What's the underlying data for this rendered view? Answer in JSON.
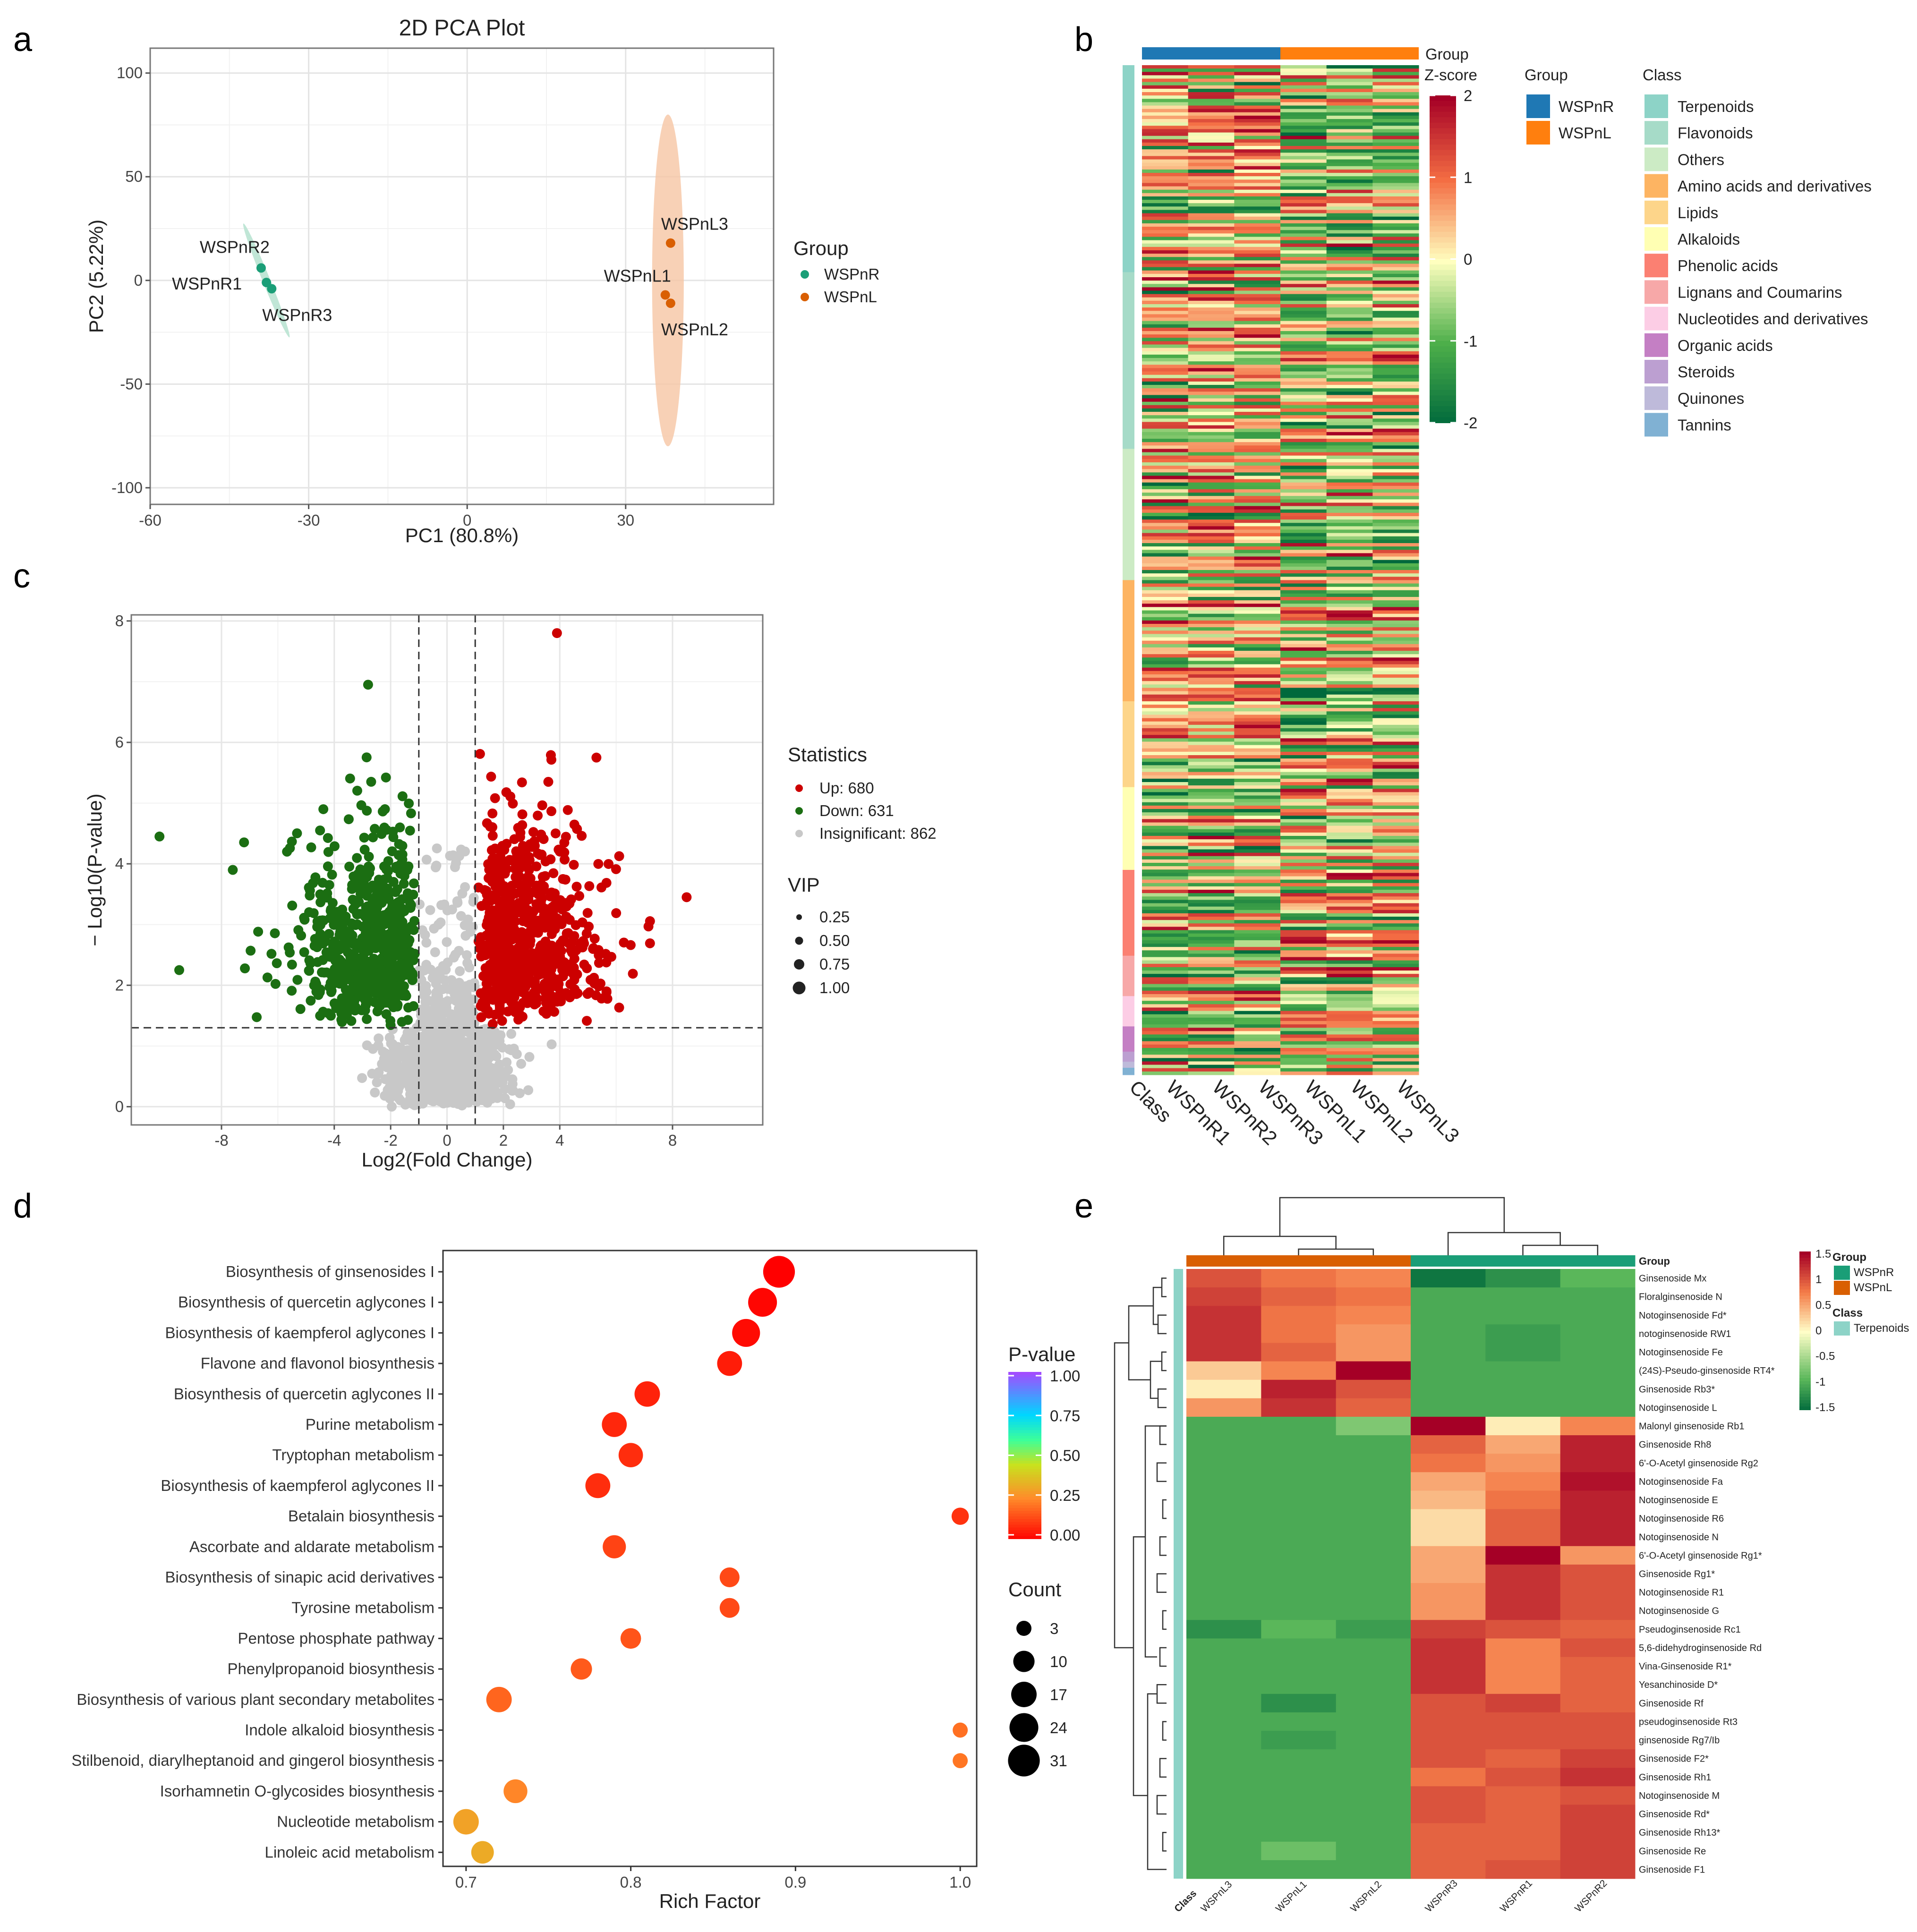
{
  "figure": {
    "panel_letters": [
      "a",
      "b",
      "c",
      "d",
      "e"
    ]
  },
  "chart_data": [
    {
      "panel": "a",
      "type": "scatter",
      "title": "2D PCA Plot",
      "xlabel": "PC1 (80.8%)",
      "ylabel": "PC2 (5.22%)",
      "xlim": [
        -60,
        58
      ],
      "ylim": [
        -108,
        112
      ],
      "xticks": [
        -60,
        -30,
        0,
        30
      ],
      "yticks": [
        -100,
        -50,
        0,
        50,
        100
      ],
      "grid": true,
      "legend": {
        "title": "Group",
        "position": "right",
        "entries": [
          "WSPnR",
          "WSPnL"
        ]
      },
      "colors": {
        "WSPnR": "#1a9e77",
        "WSPnL": "#d95f02",
        "ellipse_WSPnL": "#f6c6a4"
      },
      "points": [
        {
          "label": "WSPnR2",
          "group": "WSPnR",
          "x": -39,
          "y": 6
        },
        {
          "label": "WSPnR1",
          "group": "WSPnR",
          "x": -38,
          "y": -1
        },
        {
          "label": "WSPnR3",
          "group": "WSPnR",
          "x": -37,
          "y": -4
        },
        {
          "label": "WSPnL3",
          "group": "WSPnL",
          "x": 38.5,
          "y": 18
        },
        {
          "label": "WSPnL1",
          "group": "WSPnL",
          "x": 37.5,
          "y": -7
        },
        {
          "label": "WSPnL2",
          "group": "WSPnL",
          "x": 38.5,
          "y": -11
        }
      ],
      "ellipses": [
        {
          "group": "WSPnR",
          "cx": -38,
          "cy": 0,
          "note": "narrow tilted ellipse"
        },
        {
          "group": "WSPnL",
          "cx": 38,
          "cy": 0,
          "rx": 3,
          "ry": 80
        }
      ]
    },
    {
      "panel": "b",
      "type": "heatmap",
      "columns": [
        "WSPnR1",
        "WSPnR2",
        "WSPnR3",
        "WSPnL1",
        "WSPnL2",
        "WSPnL3"
      ],
      "annotation_label": "Class",
      "group_annotation_label": "Group",
      "scale": {
        "title": "Z-score",
        "min": -2,
        "max": 2,
        "ticks": [
          2,
          1,
          0,
          -1,
          -2
        ]
      },
      "groups": [
        {
          "name": "WSPnR",
          "color": "#1f78b4"
        },
        {
          "name": "WSPnL",
          "color": "#ff7f0e"
        }
      ],
      "classes": [
        {
          "name": "Terpenoids",
          "color": "#8dd3c7",
          "fraction": 0.205
        },
        {
          "name": "Flavonoids",
          "color": "#a6dbc8",
          "fraction": 0.175
        },
        {
          "name": "Others",
          "color": "#ccebc5",
          "fraction": 0.13
        },
        {
          "name": "Amino acids and derivatives",
          "color": "#fdb462",
          "fraction": 0.12
        },
        {
          "name": "Lipids",
          "color": "#fdd58a",
          "fraction": 0.085
        },
        {
          "name": "Alkaloids",
          "color": "#ffffb3",
          "fraction": 0.082
        },
        {
          "name": "Phenolic acids",
          "color": "#fb8072",
          "fraction": 0.085
        },
        {
          "name": "Lignans and Coumarins",
          "color": "#f7a8a8",
          "fraction": 0.04
        },
        {
          "name": "Nucleotides and derivatives",
          "color": "#fccde5",
          "fraction": 0.03
        },
        {
          "name": "Organic acids",
          "color": "#c47fc4",
          "fraction": 0.025
        },
        {
          "name": "Steroids",
          "color": "#bc9fd1",
          "fraction": 0.01
        },
        {
          "name": "Quinones",
          "color": "#bebada",
          "fraction": 0.006
        },
        {
          "name": "Tannins",
          "color": "#80b1d3",
          "fraction": 0.007
        }
      ],
      "n_rows": 300
    },
    {
      "panel": "c",
      "type": "scatter",
      "subtype": "volcano",
      "xlabel": "Log2(Fold Change)",
      "ylabel": "− Log10(P-value)",
      "xlim": [
        -11.2,
        11.2
      ],
      "ylim": [
        -0.3,
        8.1
      ],
      "xticks": [
        -8,
        -4,
        -2,
        0,
        2,
        4,
        8
      ],
      "yticks": [
        0,
        2,
        4,
        6,
        8
      ],
      "thresholds": {
        "fc": [
          -1,
          1
        ],
        "p": 1.3
      },
      "legend": [
        {
          "title": "Statistics",
          "entries": [
            "Up: 680",
            "Down: 631",
            "Insignificant: 862"
          ]
        },
        {
          "title": "VIP",
          "entries": [
            "0.25",
            "0.50",
            "0.75",
            "1.00"
          ]
        }
      ],
      "counts": {
        "up": 680,
        "down": 631,
        "insignificant": 862
      },
      "colors": {
        "up": "#cc0000",
        "down": "#1b6e12",
        "insignificant": "#c8c8c8"
      },
      "outliers": [
        {
          "x": -10.2,
          "y": 4.45,
          "class": "down"
        },
        {
          "x": -9.5,
          "y": 2.25,
          "class": "down"
        },
        {
          "x": -7.6,
          "y": 3.9,
          "class": "down"
        },
        {
          "x": 8.5,
          "y": 3.45,
          "class": "up"
        },
        {
          "x": 3.9,
          "y": 7.8,
          "class": "up"
        },
        {
          "x": -2.8,
          "y": 6.95,
          "class": "down"
        },
        {
          "x": 5.3,
          "y": 5.75,
          "class": "up"
        }
      ]
    },
    {
      "panel": "d",
      "type": "scatter",
      "subtype": "bubble",
      "xlabel": "Rich Factor",
      "ylabel": "",
      "xlim": [
        0.686,
        1.01
      ],
      "xticks": [
        0.7,
        0.8,
        0.9,
        1.0
      ],
      "legend": [
        {
          "title": "P-value",
          "ticks": [
            "1.00",
            "0.75",
            "0.50",
            "0.25",
            "0.00"
          ]
        },
        {
          "title": "Count",
          "entries": [
            "3",
            "10",
            "17",
            "24",
            "31"
          ]
        }
      ],
      "pathways": [
        {
          "name": "Biosynthesis of ginsenosides I",
          "rich": 0.89,
          "count": 31,
          "p": 0.0
        },
        {
          "name": "Biosynthesis of quercetin aglycones I",
          "rich": 0.88,
          "count": 24,
          "p": 0.01
        },
        {
          "name": "Biosynthesis of kaempferol aglycones I",
          "rich": 0.87,
          "count": 22,
          "p": 0.02
        },
        {
          "name": "Flavone and flavonol biosynthesis",
          "rich": 0.86,
          "count": 16,
          "p": 0.05
        },
        {
          "name": "Biosynthesis of quercetin aglycones II",
          "rich": 0.81,
          "count": 17,
          "p": 0.06
        },
        {
          "name": "Purine metabolism",
          "rich": 0.79,
          "count": 16,
          "p": 0.07
        },
        {
          "name": "Tryptophan metabolism",
          "rich": 0.8,
          "count": 15,
          "p": 0.08
        },
        {
          "name": "Biosynthesis of kaempferol aglycones II",
          "rich": 0.78,
          "count": 16,
          "p": 0.08
        },
        {
          "name": "Betalain biosynthesis",
          "rich": 1.0,
          "count": 5,
          "p": 0.09
        },
        {
          "name": "Ascorbate and aldarate metabolism",
          "rich": 0.79,
          "count": 13,
          "p": 0.12
        },
        {
          "name": "Biosynthesis of sinapic acid derivatives",
          "rich": 0.86,
          "count": 8,
          "p": 0.13
        },
        {
          "name": "Tyrosine metabolism",
          "rich": 0.86,
          "count": 8,
          "p": 0.13
        },
        {
          "name": "Pentose phosphate pathway",
          "rich": 0.8,
          "count": 9,
          "p": 0.15
        },
        {
          "name": "Phenylpropanoid biosynthesis",
          "rich": 0.77,
          "count": 10,
          "p": 0.16
        },
        {
          "name": "Biosynthesis of various plant secondary metabolites",
          "rich": 0.72,
          "count": 17,
          "p": 0.18
        },
        {
          "name": "Indole alkaloid biosynthesis",
          "rich": 1.0,
          "count": 3,
          "p": 0.2
        },
        {
          "name": "Stilbenoid, diarylheptanoid and gingerol biosynthesis",
          "rich": 1.0,
          "count": 3,
          "p": 0.21
        },
        {
          "name": "Isorhamnetin O-glycosides biosynthesis",
          "rich": 0.73,
          "count": 14,
          "p": 0.24
        },
        {
          "name": "Nucleotide metabolism",
          "rich": 0.7,
          "count": 17,
          "p": 0.3
        },
        {
          "name": "Linoleic acid metabolism",
          "rich": 0.71,
          "count": 12,
          "p": 0.32
        }
      ]
    },
    {
      "panel": "e",
      "type": "heatmap",
      "columns": [
        "WSPnL3",
        "WSPnL1",
        "WSPnL2",
        "WSPnR3",
        "WSPnR1",
        "WSPnR2"
      ],
      "column_groups": [
        "WSPnL",
        "WSPnL",
        "WSPnL",
        "WSPnR",
        "WSPnR",
        "WSPnR"
      ],
      "annotation_label": "Class",
      "group_annotation_label": "Group",
      "scale": {
        "min": -1.5,
        "max": 1.5,
        "ticks": [
          "1.5",
          "1",
          "0.5",
          "0",
          "-0.5",
          "-1",
          "-1.5"
        ]
      },
      "legend": {
        "group_title": "Group",
        "groups": [
          {
            "name": "WSPnR",
            "color": "#1a9e77"
          },
          {
            "name": "WSPnL",
            "color": "#d95f02"
          }
        ],
        "class_title": "Class",
        "classes": [
          {
            "name": "Terpenoids",
            "color": "#8dd3c7"
          }
        ]
      },
      "rows": [
        {
          "name": "Ginsenoside Mx",
          "values": [
            1.0,
            0.8,
            0.7,
            -1.4,
            -1.2,
            -0.9
          ]
        },
        {
          "name": "Floralginsenoside N",
          "values": [
            1.1,
            0.9,
            0.8,
            -1.0,
            -1.0,
            -1.0
          ]
        },
        {
          "name": "Notoginsenoside Fd*",
          "values": [
            1.2,
            0.8,
            0.7,
            -1.0,
            -1.0,
            -1.0
          ]
        },
        {
          "name": "notoginsenoside RW1",
          "values": [
            1.2,
            0.8,
            0.6,
            -1.0,
            -1.1,
            -1.0
          ]
        },
        {
          "name": "Notoginsenoside Fe",
          "values": [
            1.2,
            0.9,
            0.6,
            -1.0,
            -1.1,
            -1.0
          ]
        },
        {
          "name": "(24S)-Pseudo-ginsenoside RT4*",
          "values": [
            0.3,
            0.7,
            1.6,
            -1.0,
            -1.0,
            -1.0
          ]
        },
        {
          "name": "Ginsenoside Rb3*",
          "values": [
            0.1,
            1.3,
            1.0,
            -1.0,
            -1.0,
            -1.0
          ]
        },
        {
          "name": "Notoginsenoside L",
          "values": [
            0.6,
            1.2,
            0.9,
            -1.0,
            -1.0,
            -1.0
          ]
        },
        {
          "name": "Malonyl ginsenoside Rb1",
          "values": [
            -1.0,
            -1.0,
            -0.7,
            1.6,
            0.1,
            0.7
          ]
        },
        {
          "name": "Ginsenoside Rh8",
          "values": [
            -1.0,
            -1.0,
            -1.0,
            0.9,
            0.5,
            1.3
          ]
        },
        {
          "name": "6'-O-Acetyl ginsenoside Rg2",
          "values": [
            -1.0,
            -1.0,
            -1.0,
            0.8,
            0.6,
            1.3
          ]
        },
        {
          "name": "Notoginsenoside Fa",
          "values": [
            -1.0,
            -1.0,
            -1.0,
            0.5,
            0.7,
            1.4
          ]
        },
        {
          "name": "Notoginsenoside E",
          "values": [
            -1.0,
            -1.0,
            -1.0,
            0.4,
            0.8,
            1.3
          ]
        },
        {
          "name": "Notoginsenoside R6",
          "values": [
            -1.0,
            -1.0,
            -1.0,
            0.2,
            0.9,
            1.3
          ]
        },
        {
          "name": "Notoginsenoside N",
          "values": [
            -1.0,
            -1.0,
            -1.0,
            0.2,
            0.9,
            1.3
          ]
        },
        {
          "name": "6'-O-Acetyl ginsenoside Rg1*",
          "values": [
            -1.0,
            -1.0,
            -1.0,
            0.5,
            1.5,
            0.6
          ]
        },
        {
          "name": "Ginsenoside Rg1*",
          "values": [
            -1.0,
            -1.0,
            -1.0,
            0.5,
            1.2,
            1.0
          ]
        },
        {
          "name": "Notoginsenoside R1",
          "values": [
            -1.0,
            -1.0,
            -1.0,
            0.6,
            1.2,
            1.0
          ]
        },
        {
          "name": "Notoginsenoside G",
          "values": [
            -1.0,
            -1.0,
            -1.0,
            0.6,
            1.2,
            1.0
          ]
        },
        {
          "name": "Pseudoginsenoside Rc1",
          "values": [
            -1.2,
            -0.9,
            -1.1,
            1.1,
            1.0,
            0.9
          ]
        },
        {
          "name": "5,6-didehydroginsenoside Rd",
          "values": [
            -1.0,
            -1.0,
            -1.0,
            1.2,
            0.7,
            1.0
          ]
        },
        {
          "name": "Vina-Ginsenoside R1*",
          "values": [
            -1.0,
            -1.0,
            -1.0,
            1.2,
            0.7,
            0.9
          ]
        },
        {
          "name": "Yesanchinoside D*",
          "values": [
            -1.0,
            -1.0,
            -1.0,
            1.2,
            0.7,
            0.9
          ]
        },
        {
          "name": "Ginsenoside Rf",
          "values": [
            -1.0,
            -1.2,
            -1.0,
            1.0,
            1.1,
            0.9
          ]
        },
        {
          "name": "pseudoginsenoside Rt3",
          "values": [
            -1.0,
            -1.0,
            -1.0,
            1.0,
            1.0,
            1.0
          ]
        },
        {
          "name": "ginsenoside Rg7/Ib",
          "values": [
            -1.0,
            -1.1,
            -1.0,
            1.0,
            1.0,
            1.0
          ]
        },
        {
          "name": "Ginsenoside F2*",
          "values": [
            -1.0,
            -1.0,
            -1.0,
            1.0,
            0.9,
            1.1
          ]
        },
        {
          "name": "Ginsenoside Rh1",
          "values": [
            -1.0,
            -1.0,
            -1.0,
            0.8,
            1.0,
            1.2
          ]
        },
        {
          "name": "Notoginsenoside M",
          "values": [
            -1.0,
            -1.0,
            -1.0,
            1.0,
            0.9,
            1.0
          ]
        },
        {
          "name": "Ginsenoside Rd*",
          "values": [
            -1.0,
            -1.0,
            -1.0,
            1.0,
            0.9,
            1.1
          ]
        },
        {
          "name": "Ginsenoside Rh13*",
          "values": [
            -1.0,
            -1.0,
            -1.0,
            0.9,
            0.9,
            1.1
          ]
        },
        {
          "name": "Ginsenoside Re",
          "values": [
            -1.0,
            -0.8,
            -1.0,
            0.9,
            0.9,
            1.1
          ]
        },
        {
          "name": "Ginsenoside F1",
          "values": [
            -1.0,
            -1.0,
            -1.0,
            0.9,
            1.0,
            1.1
          ]
        }
      ]
    }
  ]
}
